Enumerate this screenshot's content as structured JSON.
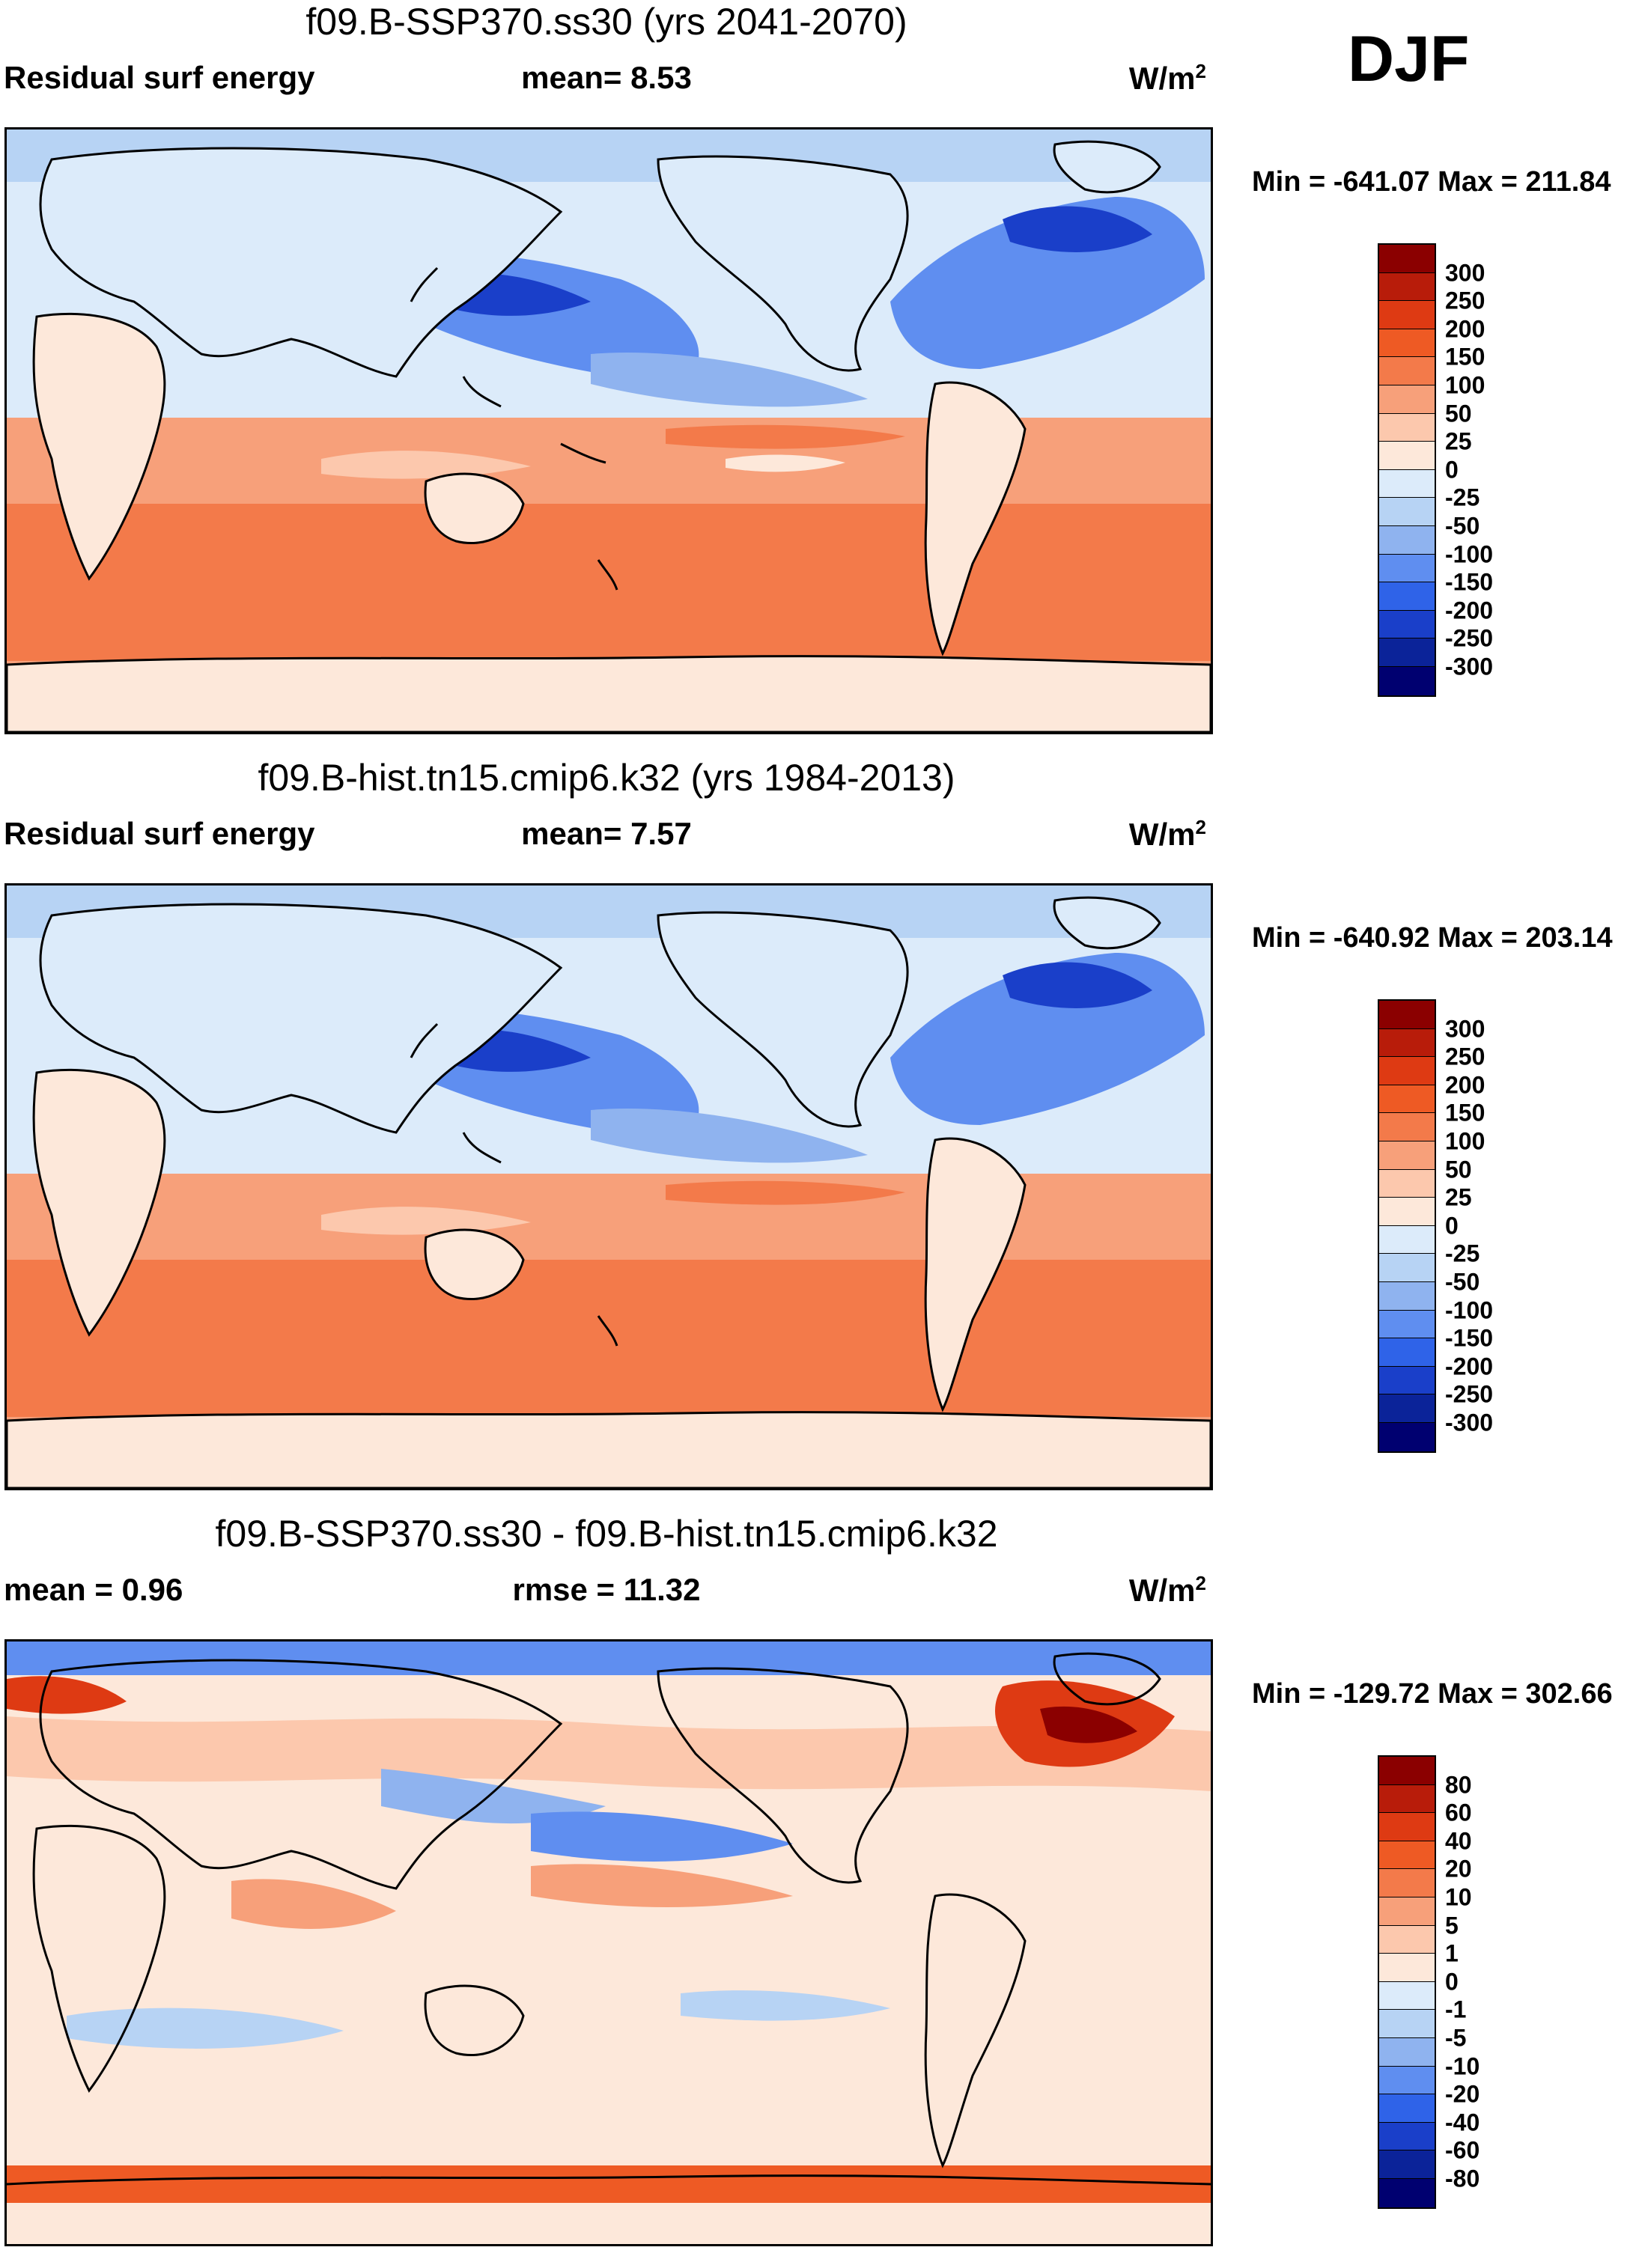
{
  "season": "DJF",
  "panels": [
    {
      "title": "f09.B-SSP370.ss30 (yrs 2041-2070)",
      "left_label": "Residual surf energy",
      "mid_label": "mean=   8.53",
      "units": "W/m",
      "units_sup": "2",
      "minmax": "Min = -641.07 Max = 211.84",
      "levels": [
        "300",
        "250",
        "200",
        "150",
        "100",
        "50",
        "25",
        "0",
        "-25",
        "-50",
        "-100",
        "-150",
        "-200",
        "-250",
        "-300"
      ],
      "colors": [
        "#8b0000",
        "#b81c0a",
        "#de3a13",
        "#ee5a24",
        "#f37a4a",
        "#f7a07a",
        "#fcc8ad",
        "#fde8da",
        "#dcebfa",
        "#b7d3f4",
        "#8fb3ef",
        "#5f8ef0",
        "#2f63e8",
        "#1a3fc9",
        "#0b2399",
        "#000070"
      ]
    },
    {
      "title": "f09.B-hist.tn15.cmip6.k32 (yrs 1984-2013)",
      "left_label": "Residual surf energy",
      "mid_label": "mean=   7.57",
      "units": "W/m",
      "units_sup": "2",
      "minmax": "Min = -640.92 Max = 203.14",
      "levels": [
        "300",
        "250",
        "200",
        "150",
        "100",
        "50",
        "25",
        "0",
        "-25",
        "-50",
        "-100",
        "-150",
        "-200",
        "-250",
        "-300"
      ],
      "colors": [
        "#8b0000",
        "#b81c0a",
        "#de3a13",
        "#ee5a24",
        "#f37a4a",
        "#f7a07a",
        "#fcc8ad",
        "#fde8da",
        "#dcebfa",
        "#b7d3f4",
        "#8fb3ef",
        "#5f8ef0",
        "#2f63e8",
        "#1a3fc9",
        "#0b2399",
        "#000070"
      ]
    },
    {
      "title": "f09.B-SSP370.ss30 - f09.B-hist.tn15.cmip6.k32",
      "left_label": "mean =   0.96",
      "mid_label": "rmse =  11.32",
      "units": "W/m",
      "units_sup": "2",
      "minmax": "Min = -129.72 Max = 302.66",
      "levels": [
        "80",
        "60",
        "40",
        "20",
        "10",
        "5",
        "1",
        "0",
        "-1",
        "-5",
        "-10",
        "-20",
        "-40",
        "-60",
        "-80"
      ],
      "colors": [
        "#8b0000",
        "#b81c0a",
        "#de3a13",
        "#ee5a24",
        "#f37a4a",
        "#f7a07a",
        "#fcc8ad",
        "#fde8da",
        "#dcebfa",
        "#b7d3f4",
        "#8fb3ef",
        "#5f8ef0",
        "#2f63e8",
        "#1a3fc9",
        "#0b2399",
        "#000070"
      ]
    }
  ]
}
